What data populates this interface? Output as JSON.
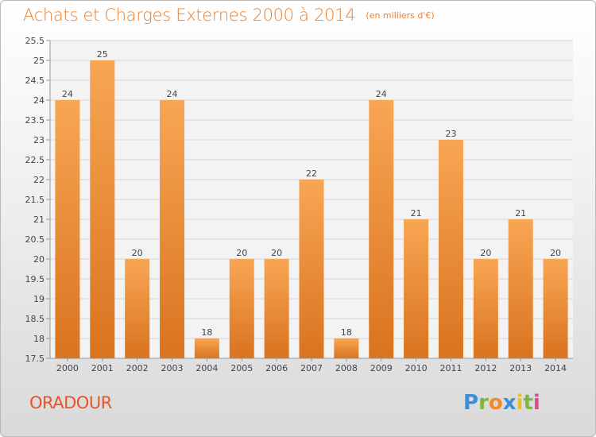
{
  "header": {
    "title": "Achats et Charges Externes 2000 à 2014",
    "subtitle": "(en milliers d'€)"
  },
  "footer": {
    "commune": "ORADOUR",
    "brand": "Proxiti"
  },
  "colors": {
    "bar_light": "#f8a654",
    "bar_dark": "#d9731f",
    "title": "#f07f2e",
    "commune": "#e8552b"
  },
  "chart_data": {
    "type": "bar",
    "categories": [
      "2000",
      "2001",
      "2002",
      "2003",
      "2004",
      "2005",
      "2006",
      "2007",
      "2008",
      "2009",
      "2010",
      "2011",
      "2012",
      "2013",
      "2014"
    ],
    "values": [
      24,
      25,
      20,
      24,
      18,
      20,
      20,
      22,
      18,
      24,
      21,
      23,
      20,
      21,
      20
    ],
    "ylim": [
      17.5,
      25.5
    ],
    "yticks": [
      "17.5",
      "18",
      "18.5",
      "19",
      "19.5",
      "20",
      "20.5",
      "21",
      "21.5",
      "22",
      "22.5",
      "23",
      "23.5",
      "24",
      "24.5",
      "25",
      "25.5"
    ],
    "grid": true,
    "legend": "none",
    "data_labels": true
  }
}
